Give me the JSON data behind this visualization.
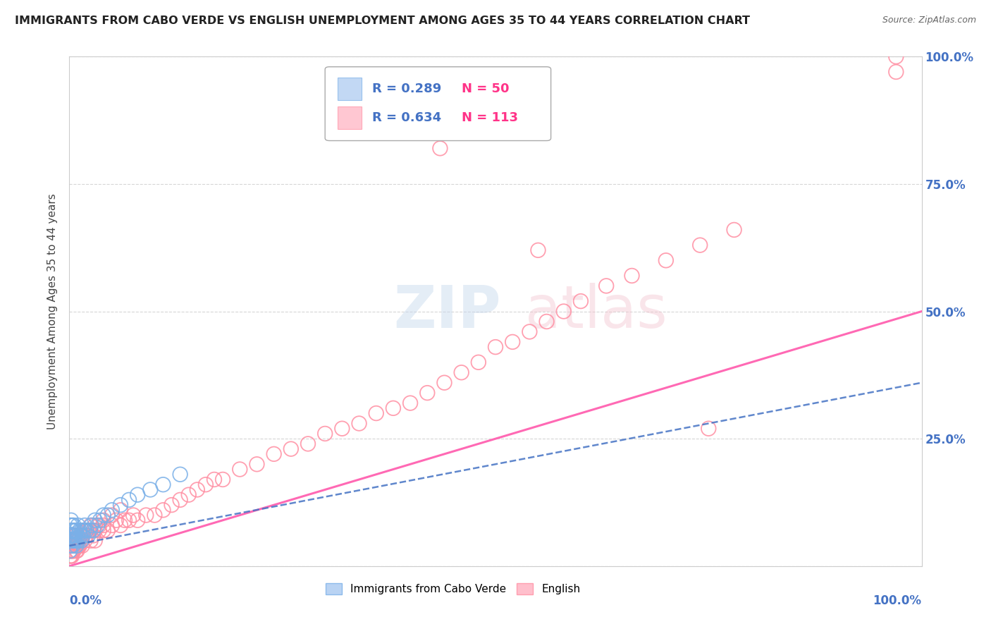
{
  "title": "IMMIGRANTS FROM CABO VERDE VS ENGLISH UNEMPLOYMENT AMONG AGES 35 TO 44 YEARS CORRELATION CHART",
  "source": "Source: ZipAtlas.com",
  "ylabel": "Unemployment Among Ages 35 to 44 years",
  "legend_blue_r": "R = 0.289",
  "legend_blue_n": "N = 50",
  "legend_pink_r": "R = 0.634",
  "legend_pink_n": "N = 113",
  "cabo_verde_label": "Immigrants from Cabo Verde",
  "english_label": "English",
  "title_color": "#222222",
  "source_color": "#666666",
  "blue_scatter_color": "#a8c8f0",
  "blue_scatter_edge": "#7ab0e8",
  "pink_scatter_color": "#ffb0c0",
  "pink_scatter_edge": "#ff8fa3",
  "blue_line_color": "#4472c4",
  "pink_line_color": "#ff69b4",
  "legend_r_color": "#4472c4",
  "legend_n_color": "#ff3388",
  "background_color": "#ffffff",
  "grid_color": "#cccccc",
  "xlim": [
    0.0,
    1.0
  ],
  "ylim": [
    0.0,
    1.0
  ],
  "cabo_verde_x": [
    0.0005,
    0.001,
    0.001,
    0.0015,
    0.002,
    0.002,
    0.002,
    0.003,
    0.003,
    0.003,
    0.004,
    0.004,
    0.004,
    0.005,
    0.005,
    0.005,
    0.006,
    0.006,
    0.007,
    0.007,
    0.008,
    0.008,
    0.009,
    0.01,
    0.01,
    0.011,
    0.012,
    0.013,
    0.014,
    0.015,
    0.016,
    0.017,
    0.018,
    0.02,
    0.022,
    0.024,
    0.026,
    0.028,
    0.03,
    0.033,
    0.036,
    0.04,
    0.045,
    0.05,
    0.06,
    0.07,
    0.08,
    0.095,
    0.11,
    0.13
  ],
  "cabo_verde_y": [
    0.03,
    0.06,
    0.08,
    0.05,
    0.04,
    0.07,
    0.09,
    0.05,
    0.06,
    0.08,
    0.04,
    0.06,
    0.07,
    0.05,
    0.06,
    0.08,
    0.05,
    0.07,
    0.05,
    0.06,
    0.04,
    0.07,
    0.05,
    0.06,
    0.08,
    0.05,
    0.07,
    0.06,
    0.05,
    0.07,
    0.06,
    0.07,
    0.08,
    0.07,
    0.06,
    0.07,
    0.08,
    0.07,
    0.09,
    0.08,
    0.09,
    0.1,
    0.1,
    0.11,
    0.12,
    0.13,
    0.14,
    0.15,
    0.16,
    0.18
  ],
  "english_x": [
    0.001,
    0.001,
    0.002,
    0.002,
    0.002,
    0.003,
    0.003,
    0.003,
    0.004,
    0.004,
    0.005,
    0.005,
    0.005,
    0.006,
    0.006,
    0.007,
    0.007,
    0.008,
    0.008,
    0.009,
    0.01,
    0.01,
    0.012,
    0.012,
    0.015,
    0.015,
    0.018,
    0.018,
    0.02,
    0.022,
    0.025,
    0.025,
    0.028,
    0.03,
    0.03,
    0.035,
    0.035,
    0.04,
    0.04,
    0.045,
    0.05,
    0.055,
    0.06,
    0.065,
    0.07,
    0.075,
    0.08,
    0.09,
    0.1,
    0.11,
    0.12,
    0.13,
    0.14,
    0.15,
    0.16,
    0.17,
    0.18,
    0.2,
    0.22,
    0.24,
    0.26,
    0.28,
    0.3,
    0.32,
    0.34,
    0.36,
    0.38,
    0.4,
    0.42,
    0.44,
    0.46,
    0.48,
    0.5,
    0.52,
    0.54,
    0.56,
    0.58,
    0.6,
    0.63,
    0.66,
    0.7,
    0.74,
    0.78,
    0.001,
    0.002,
    0.003,
    0.004,
    0.005,
    0.006,
    0.008,
    0.01,
    0.015,
    0.02,
    0.025,
    0.03,
    0.04,
    0.05,
    0.06,
    0.435,
    0.55,
    0.75,
    0.97,
    0.97,
    0.001,
    0.002,
    0.003,
    0.005,
    0.007,
    0.009,
    0.011,
    0.015,
    0.02,
    0.025
  ],
  "english_y": [
    0.03,
    0.04,
    0.02,
    0.04,
    0.05,
    0.03,
    0.04,
    0.06,
    0.03,
    0.05,
    0.03,
    0.04,
    0.05,
    0.04,
    0.06,
    0.04,
    0.05,
    0.03,
    0.05,
    0.04,
    0.04,
    0.05,
    0.04,
    0.06,
    0.04,
    0.06,
    0.05,
    0.07,
    0.06,
    0.07,
    0.05,
    0.07,
    0.06,
    0.05,
    0.07,
    0.07,
    0.08,
    0.07,
    0.08,
    0.07,
    0.08,
    0.09,
    0.08,
    0.09,
    0.09,
    0.1,
    0.09,
    0.1,
    0.1,
    0.11,
    0.12,
    0.13,
    0.14,
    0.15,
    0.16,
    0.17,
    0.17,
    0.19,
    0.2,
    0.22,
    0.23,
    0.24,
    0.26,
    0.27,
    0.28,
    0.3,
    0.31,
    0.32,
    0.34,
    0.36,
    0.38,
    0.4,
    0.43,
    0.44,
    0.46,
    0.48,
    0.5,
    0.52,
    0.55,
    0.57,
    0.6,
    0.63,
    0.66,
    0.03,
    0.04,
    0.03,
    0.05,
    0.04,
    0.05,
    0.06,
    0.05,
    0.06,
    0.07,
    0.08,
    0.08,
    0.09,
    0.1,
    0.11,
    0.82,
    0.62,
    0.27,
    1.0,
    0.97,
    0.02,
    0.03,
    0.02,
    0.03,
    0.04,
    0.03,
    0.04,
    0.05,
    0.06,
    0.07
  ],
  "pink_line_x0": 0.0,
  "pink_line_y0": 0.0,
  "pink_line_x1": 1.0,
  "pink_line_y1": 0.5,
  "blue_line_x0": 0.0,
  "blue_line_y0": 0.04,
  "blue_line_x1": 1.0,
  "blue_line_y1": 0.36
}
